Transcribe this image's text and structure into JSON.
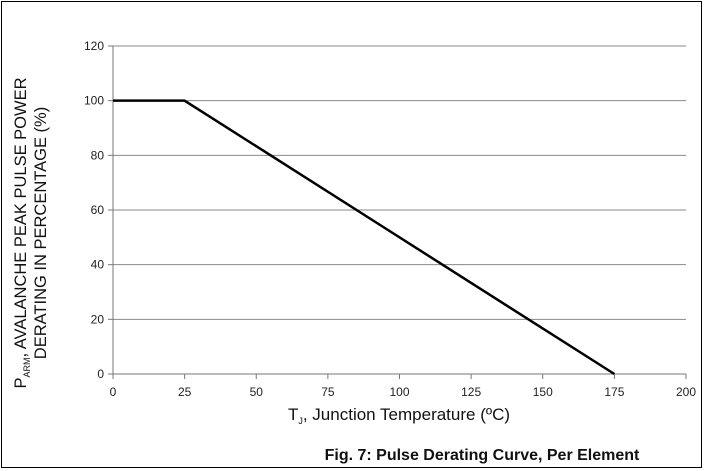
{
  "chart_data": {
    "type": "line",
    "title": "",
    "caption": "Fig. 7: Pulse Derating Curve, Per Element",
    "xlabel": {
      "symbol": "T",
      "subscript": "J",
      "text": ", Junction Temperature (ºC)"
    },
    "ylabel": {
      "line1_symbol": "P",
      "line1_subscript": "ARM",
      "line1_text": ", AVALANCHE PEAK PULSE POWER",
      "line2": "DERATING IN PERCENTAGE (%)"
    },
    "xlim": [
      0,
      200
    ],
    "ylim": [
      0,
      120
    ],
    "xticks": [
      0,
      25,
      50,
      75,
      100,
      125,
      150,
      175,
      200
    ],
    "yticks": [
      0,
      20,
      40,
      60,
      80,
      100,
      120
    ],
    "grid": "horizontal",
    "series": [
      {
        "color": "#000000",
        "x": [
          0,
          25,
          175
        ],
        "y": [
          100,
          100,
          0
        ]
      }
    ]
  }
}
